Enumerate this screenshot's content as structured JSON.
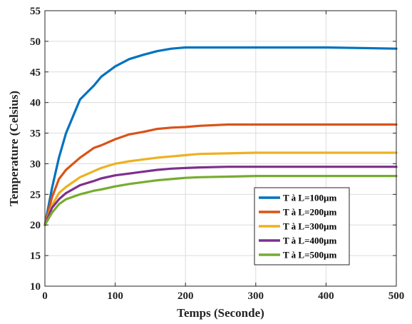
{
  "chart_data": {
    "type": "line",
    "title": "",
    "xlabel": "Temps (Seconde)",
    "ylabel": "Temperature (Celsius)",
    "xlim": [
      0,
      500
    ],
    "ylim": [
      10,
      55
    ],
    "xticks": [
      0,
      100,
      200,
      300,
      400,
      500
    ],
    "yticks": [
      10,
      15,
      20,
      25,
      30,
      35,
      40,
      45,
      50,
      55
    ],
    "grid": true,
    "legend_position": "lower-right",
    "x": [
      0,
      10,
      20,
      30,
      50,
      70,
      80,
      100,
      120,
      140,
      160,
      180,
      200,
      220,
      260,
      300,
      350,
      400,
      450,
      500
    ],
    "series": [
      {
        "name": "T à L=100µm",
        "color": "#0072BD",
        "values": [
          20,
          26,
          31,
          35,
          40.5,
          42.8,
          44.2,
          45.9,
          47.1,
          47.8,
          48.4,
          48.8,
          49.0,
          49.0,
          49.0,
          49.0,
          49.0,
          49.0,
          48.9,
          48.8
        ]
      },
      {
        "name": "T à L=200µm",
        "color": "#D95319",
        "values": [
          20,
          24.5,
          27.5,
          29.0,
          31.0,
          32.6,
          33.0,
          34.0,
          34.8,
          35.2,
          35.7,
          35.9,
          36.0,
          36.2,
          36.4,
          36.4,
          36.4,
          36.4,
          36.4,
          36.4
        ]
      },
      {
        "name": "T à L=300µm",
        "color": "#EDB120",
        "values": [
          20,
          23.2,
          25.2,
          26.2,
          27.8,
          28.8,
          29.3,
          30.0,
          30.4,
          30.7,
          31.0,
          31.2,
          31.4,
          31.6,
          31.7,
          31.8,
          31.8,
          31.8,
          31.8,
          31.8
        ]
      },
      {
        "name": "T à L=400µm",
        "color": "#7E2F8E",
        "values": [
          20,
          22.8,
          24.2,
          25.2,
          26.5,
          27.2,
          27.6,
          28.1,
          28.4,
          28.7,
          29.0,
          29.2,
          29.3,
          29.4,
          29.5,
          29.5,
          29.5,
          29.5,
          29.5,
          29.5
        ]
      },
      {
        "name": "T à L=500µm",
        "color": "#77AC30",
        "values": [
          20,
          22.0,
          23.4,
          24.2,
          25.0,
          25.6,
          25.8,
          26.3,
          26.7,
          27.0,
          27.3,
          27.5,
          27.7,
          27.8,
          27.9,
          28.0,
          28.0,
          28.0,
          28.0,
          28.0
        ]
      }
    ]
  }
}
